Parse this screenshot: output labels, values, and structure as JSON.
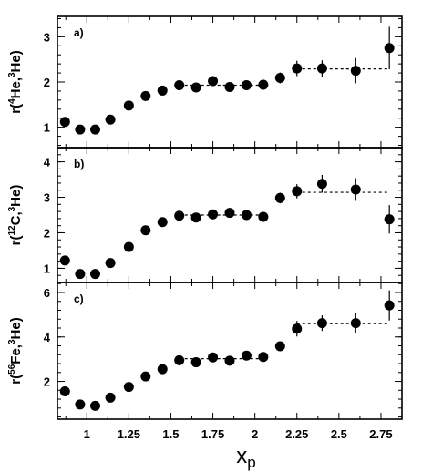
{
  "chart_data": {
    "type": "scatter",
    "x_axis": {
      "label_main": "x",
      "label_sub": "p",
      "range": [
        0.825,
        2.875
      ],
      "ticks": [
        1,
        1.25,
        1.5,
        1.75,
        2,
        2.25,
        2.5,
        2.75
      ],
      "tick_labels": [
        "1",
        "1.25",
        "1.5",
        "1.75",
        "2",
        "2.25",
        "2.5",
        "2.75"
      ]
    },
    "panels": [
      {
        "panel_label": "a)",
        "ylabel": {
          "pre": "r(",
          "sup1": "4",
          "mid": "He,",
          "sup2": "3",
          "post": "He)"
        },
        "ylim": [
          0.55,
          3.45
        ],
        "yticks": [
          1,
          2,
          3
        ],
        "ytick_labels": [
          "1",
          "2",
          "3"
        ],
        "points": [
          {
            "x": 0.87,
            "y": 1.12,
            "err": 0.05
          },
          {
            "x": 0.96,
            "y": 0.95,
            "err": 0.05
          },
          {
            "x": 1.05,
            "y": 0.95,
            "err": 0.05
          },
          {
            "x": 1.14,
            "y": 1.17,
            "err": 0.05
          },
          {
            "x": 1.25,
            "y": 1.48,
            "err": 0.05
          },
          {
            "x": 1.35,
            "y": 1.69,
            "err": 0.05
          },
          {
            "x": 1.45,
            "y": 1.81,
            "err": 0.05
          },
          {
            "x": 1.55,
            "y": 1.93,
            "err": 0.06
          },
          {
            "x": 1.65,
            "y": 1.88,
            "err": 0.06
          },
          {
            "x": 1.75,
            "y": 2.02,
            "err": 0.07
          },
          {
            "x": 1.85,
            "y": 1.89,
            "err": 0.07
          },
          {
            "x": 1.95,
            "y": 1.93,
            "err": 0.07
          },
          {
            "x": 2.05,
            "y": 1.94,
            "err": 0.08
          },
          {
            "x": 2.15,
            "y": 2.09,
            "err": 0.12
          },
          {
            "x": 2.25,
            "y": 2.3,
            "err": 0.17
          },
          {
            "x": 2.4,
            "y": 2.3,
            "err": 0.18
          },
          {
            "x": 2.6,
            "y": 2.25,
            "err": 0.28
          },
          {
            "x": 2.8,
            "y": 2.75,
            "err": 0.47
          }
        ],
        "fits": [
          {
            "x": [
              1.55,
              2.05
            ],
            "y": 1.93
          },
          {
            "x": [
              2.25,
              2.8
            ],
            "y": 2.29
          }
        ]
      },
      {
        "panel_label": "b)",
        "ylabel": {
          "pre": "r(",
          "sup1": "12",
          "mid": "C,",
          "sup2": "3",
          "post": "He)"
        },
        "ylim": [
          0.6,
          4.4
        ],
        "yticks": [
          1,
          2,
          3,
          4
        ],
        "ytick_labels": [
          "1",
          "2",
          "3",
          "4"
        ],
        "points": [
          {
            "x": 0.87,
            "y": 1.22,
            "err": 0.06
          },
          {
            "x": 0.96,
            "y": 0.84,
            "err": 0.06
          },
          {
            "x": 1.05,
            "y": 0.84,
            "err": 0.06
          },
          {
            "x": 1.14,
            "y": 1.15,
            "err": 0.06
          },
          {
            "x": 1.25,
            "y": 1.6,
            "err": 0.06
          },
          {
            "x": 1.35,
            "y": 2.07,
            "err": 0.07
          },
          {
            "x": 1.45,
            "y": 2.3,
            "err": 0.08
          },
          {
            "x": 1.55,
            "y": 2.48,
            "err": 0.08
          },
          {
            "x": 1.65,
            "y": 2.43,
            "err": 0.08
          },
          {
            "x": 1.75,
            "y": 2.52,
            "err": 0.09
          },
          {
            "x": 1.85,
            "y": 2.56,
            "err": 0.1
          },
          {
            "x": 1.95,
            "y": 2.5,
            "err": 0.1
          },
          {
            "x": 2.05,
            "y": 2.45,
            "err": 0.1
          },
          {
            "x": 2.15,
            "y": 2.98,
            "err": 0.15
          },
          {
            "x": 2.25,
            "y": 3.17,
            "err": 0.2
          },
          {
            "x": 2.4,
            "y": 3.38,
            "err": 0.25
          },
          {
            "x": 2.6,
            "y": 3.22,
            "err": 0.32
          },
          {
            "x": 2.8,
            "y": 2.38,
            "err": 0.4
          }
        ],
        "fits": [
          {
            "x": [
              1.55,
              2.05
            ],
            "y": 2.5
          },
          {
            "x": [
              2.25,
              2.8
            ],
            "y": 3.14
          }
        ]
      },
      {
        "panel_label": "c)",
        "ylabel": {
          "pre": "r(",
          "sup1": "56",
          "mid": "Fe,",
          "sup2": "3",
          "post": "He)"
        },
        "ylim": [
          0.3,
          6.45
        ],
        "yticks": [
          2,
          4,
          6
        ],
        "ytick_labels": [
          "2",
          "4",
          "6"
        ],
        "points": [
          {
            "x": 0.87,
            "y": 1.55,
            "err": 0.08
          },
          {
            "x": 0.96,
            "y": 0.96,
            "err": 0.08
          },
          {
            "x": 1.05,
            "y": 0.9,
            "err": 0.08
          },
          {
            "x": 1.14,
            "y": 1.27,
            "err": 0.08
          },
          {
            "x": 1.25,
            "y": 1.75,
            "err": 0.08
          },
          {
            "x": 1.35,
            "y": 2.22,
            "err": 0.1
          },
          {
            "x": 1.45,
            "y": 2.55,
            "err": 0.12
          },
          {
            "x": 1.55,
            "y": 2.95,
            "err": 0.14
          },
          {
            "x": 1.65,
            "y": 2.86,
            "err": 0.14
          },
          {
            "x": 1.75,
            "y": 3.08,
            "err": 0.15
          },
          {
            "x": 1.85,
            "y": 2.93,
            "err": 0.15
          },
          {
            "x": 1.95,
            "y": 3.16,
            "err": 0.15
          },
          {
            "x": 2.05,
            "y": 3.1,
            "err": 0.15
          },
          {
            "x": 2.15,
            "y": 3.58,
            "err": 0.2
          },
          {
            "x": 2.25,
            "y": 4.37,
            "err": 0.35
          },
          {
            "x": 2.4,
            "y": 4.62,
            "err": 0.35
          },
          {
            "x": 2.6,
            "y": 4.62,
            "err": 0.45
          },
          {
            "x": 2.8,
            "y": 5.42,
            "err": 0.68
          }
        ],
        "fits": [
          {
            "x": [
              1.55,
              2.05
            ],
            "y": 3.02
          },
          {
            "x": [
              2.25,
              2.8
            ],
            "y": 4.6
          }
        ]
      }
    ]
  }
}
